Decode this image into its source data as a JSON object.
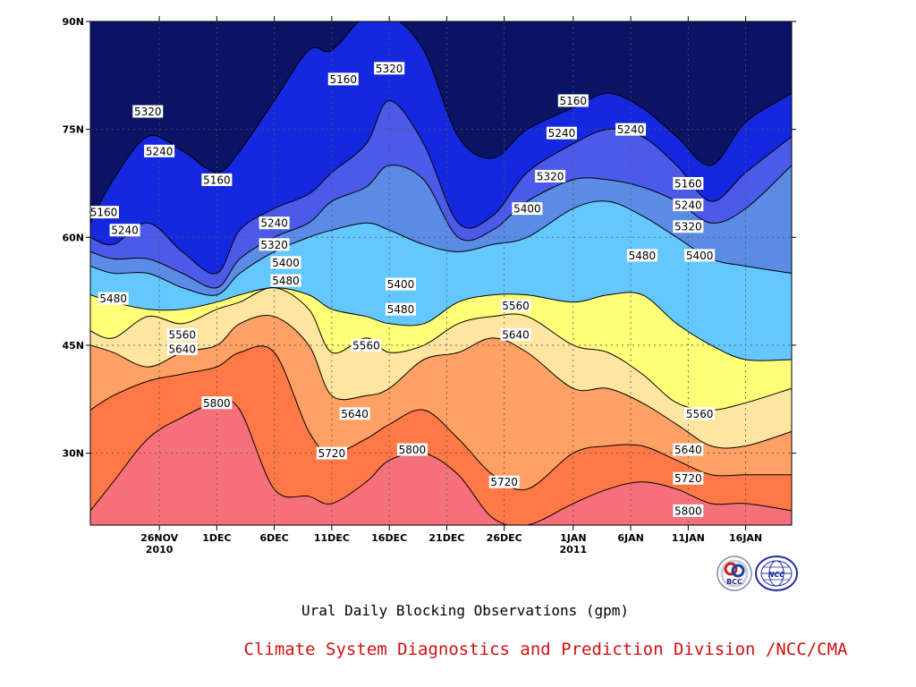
{
  "chart_data": {
    "type": "contour",
    "title": "Ural Daily Blocking Observations (gpm)",
    "credit": "Climate System Diagnostics and Prediction Division /NCC/CMA",
    "x_tick_labels": [
      {
        "date": "2010-11-26",
        "label": "26NOV",
        "year": "2010"
      },
      {
        "date": "2010-12-01",
        "label": "1DEC",
        "year": ""
      },
      {
        "date": "2010-12-06",
        "label": "6DEC",
        "year": ""
      },
      {
        "date": "2010-12-11",
        "label": "11DEC",
        "year": ""
      },
      {
        "date": "2010-12-16",
        "label": "16DEC",
        "year": ""
      },
      {
        "date": "2010-12-21",
        "label": "21DEC",
        "year": ""
      },
      {
        "date": "2010-12-26",
        "label": "26DEC",
        "year": ""
      },
      {
        "date": "2011-01-01",
        "label": "1JAN",
        "year": "2011"
      },
      {
        "date": "2011-01-06",
        "label": "6JAN",
        "year": ""
      },
      {
        "date": "2011-01-11",
        "label": "11JAN",
        "year": ""
      },
      {
        "date": "2011-01-16",
        "label": "16JAN",
        "year": ""
      }
    ],
    "xlim": [
      "2010-11-20",
      "2011-01-20"
    ],
    "y_tick_labels": [
      {
        "lat": 90,
        "label": "90N"
      },
      {
        "lat": 75,
        "label": "75N"
      },
      {
        "lat": 60,
        "label": "60N"
      },
      {
        "lat": 45,
        "label": "45N"
      },
      {
        "lat": 30,
        "label": "30N"
      }
    ],
    "ylim": [
      20,
      90
    ],
    "grid": true,
    "levels": [
      5160,
      5240,
      5320,
      5400,
      5480,
      5560,
      5640,
      5720,
      5800
    ],
    "fill_colors": [
      "#0b1464",
      "#1428e0",
      "#4b5ae8",
      "#5a8ce6",
      "#64c8ff",
      "#ffff78",
      "#ffe6a0",
      "#ffa064",
      "#ff7846",
      "#f5707a"
    ],
    "contour_x": [
      "2010-11-20",
      "2010-11-22",
      "2010-11-25",
      "2010-11-28",
      "2010-12-01",
      "2010-12-03",
      "2010-12-06",
      "2010-12-09",
      "2010-12-11",
      "2010-12-14",
      "2010-12-16",
      "2010-12-19",
      "2010-12-22",
      "2010-12-25",
      "2010-12-28",
      "2011-01-01",
      "2011-01-04",
      "2011-01-07",
      "2011-01-10",
      "2011-01-13",
      "2011-01-16",
      "2011-01-20"
    ],
    "contours": [
      {
        "level": 5160,
        "lat": [
          62.0,
          68.0,
          74.0,
          72.0,
          69.0,
          72.0,
          79.0,
          86.0,
          86.0,
          91.0,
          91.0,
          86.0,
          74.0,
          71.0,
          75.0,
          78.0,
          80.0,
          78.0,
          74.0,
          70.0,
          76.0,
          80.0
        ]
      },
      {
        "level": 5240,
        "lat": [
          60.0,
          59.0,
          62.0,
          58.0,
          55.0,
          61.0,
          64.0,
          66.0,
          69.0,
          73.0,
          79.0,
          73.0,
          62.0,
          63.0,
          69.0,
          73.0,
          75.0,
          74.0,
          70.0,
          65.0,
          69.0,
          74.0
        ]
      },
      {
        "level": 5320,
        "lat": [
          58.0,
          57.0,
          57.0,
          55.0,
          53.0,
          57.0,
          60.0,
          62.0,
          65.0,
          67.0,
          70.0,
          68.0,
          60.0,
          61.0,
          65.0,
          68.0,
          68.0,
          67.0,
          65.0,
          62.0,
          64.0,
          70.0
        ]
      },
      {
        "level": 5400,
        "lat": [
          56.0,
          55.0,
          55.0,
          53.0,
          52.0,
          55.0,
          58.0,
          60.0,
          61.0,
          62.0,
          61.0,
          59.0,
          58.0,
          59.0,
          60.0,
          64.0,
          65.0,
          63.0,
          60.0,
          57.0,
          56.0,
          55.0
        ]
      },
      {
        "level": 5480,
        "lat": [
          52.0,
          51.0,
          50.0,
          50.0,
          51.0,
          52.0,
          53.0,
          52.0,
          50.0,
          49.0,
          48.0,
          48.0,
          51.0,
          52.0,
          52.0,
          51.0,
          52.0,
          52.0,
          48.0,
          45.0,
          43.0,
          43.0
        ]
      },
      {
        "level": 5560,
        "lat": [
          47.0,
          46.0,
          49.0,
          48.0,
          50.0,
          51.0,
          53.0,
          50.0,
          44.0,
          46.0,
          44.0,
          45.0,
          48.0,
          49.0,
          49.0,
          45.0,
          44.0,
          41.0,
          37.0,
          36.0,
          37.0,
          39.0
        ]
      },
      {
        "level": 5640,
        "lat": [
          45.0,
          44.0,
          42.0,
          44.0,
          45.0,
          48.0,
          49.0,
          45.0,
          38.0,
          38.0,
          39.0,
          43.0,
          44.0,
          46.0,
          44.0,
          39.0,
          39.0,
          37.0,
          34.0,
          31.0,
          31.0,
          33.0
        ]
      },
      {
        "level": 5720,
        "lat": [
          36.0,
          38.0,
          40.0,
          41.0,
          42.0,
          44.0,
          44.0,
          33.0,
          30.0,
          32.0,
          34.0,
          36.0,
          32.0,
          27.0,
          25.0,
          30.0,
          31.0,
          31.0,
          29.0,
          27.0,
          27.0,
          27.0
        ]
      },
      {
        "level": 5800,
        "lat": [
          22.0,
          26.0,
          32.0,
          35.0,
          37.0,
          36.0,
          25.0,
          24.0,
          23.0,
          26.0,
          29.0,
          30.0,
          27.0,
          21.0,
          20.0,
          23.0,
          25.0,
          26.0,
          25.0,
          23.0,
          23.0,
          22.0
        ]
      }
    ],
    "contour_labels": [
      {
        "text": "5320",
        "date": "2010-11-25",
        "lat": 77.5
      },
      {
        "text": "5240",
        "date": "2010-11-26",
        "lat": 72.0
      },
      {
        "text": "5160",
        "date": "2010-12-01",
        "lat": 68.0
      },
      {
        "text": "5160",
        "date": "2010-11-20",
        "lat": 63.5
      },
      {
        "text": "5240",
        "date": "2010-11-23",
        "lat": 61.0
      },
      {
        "text": "5160",
        "date": "2010-12-12",
        "lat": 82.0
      },
      {
        "text": "5320",
        "date": "2010-12-16",
        "lat": 83.5
      },
      {
        "text": "5240",
        "date": "2010-12-06",
        "lat": 62.0
      },
      {
        "text": "5320",
        "date": "2010-12-06",
        "lat": 59.0
      },
      {
        "text": "5400",
        "date": "2010-12-07",
        "lat": 56.5
      },
      {
        "text": "5480",
        "date": "2010-12-07",
        "lat": 54.0
      },
      {
        "text": "5480",
        "date": "2010-11-22",
        "lat": 51.5
      },
      {
        "text": "5560",
        "date": "2010-11-28",
        "lat": 46.5
      },
      {
        "text": "5640",
        "date": "2010-11-28",
        "lat": 44.5
      },
      {
        "text": "5800",
        "date": "2010-12-01",
        "lat": 37.0
      },
      {
        "text": "5400",
        "date": "2010-12-17",
        "lat": 53.5
      },
      {
        "text": "5480",
        "date": "2010-12-17",
        "lat": 50.0
      },
      {
        "text": "5560",
        "date": "2010-12-14",
        "lat": 45.0
      },
      {
        "text": "5640",
        "date": "2010-12-13",
        "lat": 35.5
      },
      {
        "text": "5720",
        "date": "2010-12-11",
        "lat": 30.0
      },
      {
        "text": "5800",
        "date": "2010-12-18",
        "lat": 30.5
      },
      {
        "text": "5720",
        "date": "2010-12-26",
        "lat": 26.0
      },
      {
        "text": "5560",
        "date": "2010-12-27",
        "lat": 50.5
      },
      {
        "text": "5640",
        "date": "2010-12-27",
        "lat": 46.5
      },
      {
        "text": "5400",
        "date": "2010-12-28",
        "lat": 64.0
      },
      {
        "text": "5320",
        "date": "2010-12-30",
        "lat": 68.5
      },
      {
        "text": "5240",
        "date": "2010-12-31",
        "lat": 74.5
      },
      {
        "text": "5160",
        "date": "2011-01-01",
        "lat": 79.0
      },
      {
        "text": "5240",
        "date": "2011-01-06",
        "lat": 75.0
      },
      {
        "text": "5480",
        "date": "2011-01-07",
        "lat": 57.5
      },
      {
        "text": "5160",
        "date": "2011-01-11",
        "lat": 67.5
      },
      {
        "text": "5240",
        "date": "2011-01-11",
        "lat": 64.5
      },
      {
        "text": "5320",
        "date": "2011-01-11",
        "lat": 61.5
      },
      {
        "text": "5400",
        "date": "2011-01-12",
        "lat": 57.5
      },
      {
        "text": "5560",
        "date": "2011-01-12",
        "lat": 35.5
      },
      {
        "text": "5640",
        "date": "2011-01-11",
        "lat": 30.5
      },
      {
        "text": "5720",
        "date": "2011-01-11",
        "lat": 26.5
      },
      {
        "text": "5800",
        "date": "2011-01-11",
        "lat": 22.0
      }
    ]
  },
  "logos": {
    "left": "BCC",
    "right": "NCC"
  }
}
